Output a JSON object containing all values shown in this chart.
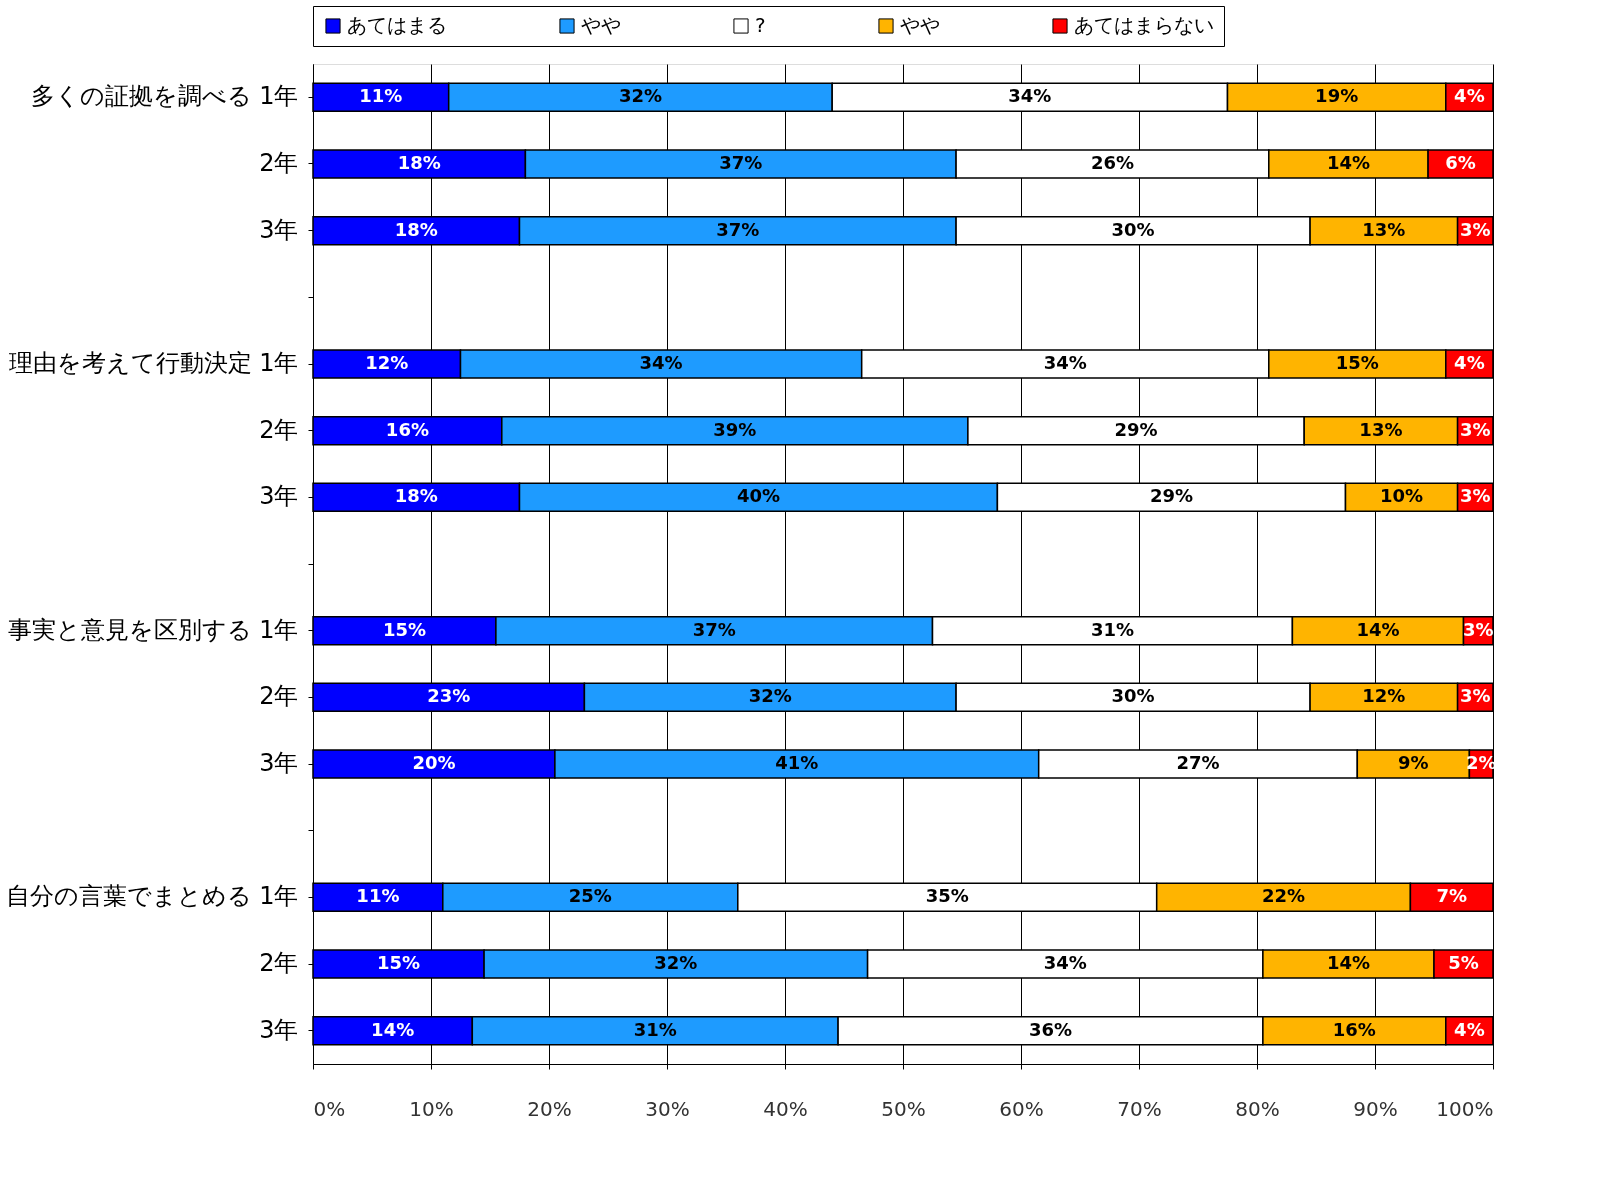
{
  "chart_data": {
    "type": "bar",
    "orientation": "horizontal",
    "stacked": true,
    "categories": [
      "多くの証拠を調べる 1年",
      "2年",
      "3年",
      null,
      "理由を考えて行動決定 1年",
      "2年",
      "3年",
      null,
      "事実と意見を区別する 1年",
      "2年",
      "3年",
      null,
      "自分の言葉でまとめる 1年",
      "2年",
      "3年"
    ],
    "series": [
      {
        "name": "あてはまる",
        "color": "#0000ff",
        "values": [
          11.5,
          18,
          17.5,
          null,
          12.5,
          16,
          17.5,
          null,
          15.5,
          23,
          20.5,
          null,
          11,
          14.5,
          13.5
        ],
        "value_labels": [
          "11%",
          "18%",
          "18%",
          null,
          "12%",
          "16%",
          "18%",
          null,
          "15%",
          "23%",
          "20%",
          null,
          "11%",
          "15%",
          "14%"
        ]
      },
      {
        "name": "やや",
        "color": "#1e9bff",
        "values": [
          32.5,
          36.5,
          37,
          null,
          34,
          39.5,
          40.5,
          null,
          37,
          31.5,
          41,
          null,
          25,
          32.5,
          31
        ],
        "value_labels": [
          "32%",
          "37%",
          "37%",
          null,
          "34%",
          "39%",
          "40%",
          null,
          "37%",
          "32%",
          "41%",
          null,
          "25%",
          "32%",
          "31%"
        ]
      },
      {
        "name": "?",
        "color": "#ffffff",
        "values": [
          33.5,
          26.5,
          30,
          null,
          34.5,
          28.5,
          29.5,
          null,
          30.5,
          30,
          27,
          null,
          35.5,
          33.5,
          36
        ],
        "value_labels": [
          "34%",
          "26%",
          "30%",
          null,
          "34%",
          "29%",
          "29%",
          null,
          "31%",
          "30%",
          "27%",
          null,
          "35%",
          "34%",
          "36%"
        ]
      },
      {
        "name": "やや",
        "color": "#ffb400",
        "values": [
          18.5,
          13.5,
          12.5,
          null,
          15,
          13,
          9.5,
          null,
          14.5,
          12.5,
          9.5,
          null,
          21.5,
          14.5,
          15.5
        ],
        "value_labels": [
          "19%",
          "14%",
          "13%",
          null,
          "15%",
          "13%",
          "10%",
          null,
          "14%",
          "12%",
          "9%",
          null,
          "22%",
          "14%",
          "16%"
        ]
      },
      {
        "name": "あてはまらない",
        "color": "#ff0000",
        "values": [
          4,
          5.5,
          3,
          null,
          4,
          3,
          3,
          null,
          2.5,
          3,
          2,
          null,
          7,
          5,
          4
        ],
        "value_labels": [
          "4%",
          "6%",
          "3%",
          null,
          "4%",
          "3%",
          "3%",
          null,
          "3%",
          "3%",
          "2%",
          null,
          "7%",
          "5%",
          "4%"
        ]
      }
    ],
    "xlim": [
      0,
      100
    ],
    "xticks": [
      {
        "value": 0,
        "label": "0%"
      },
      {
        "value": 10,
        "label": "10%"
      },
      {
        "value": 20,
        "label": "20%"
      },
      {
        "value": 30,
        "label": "30%"
      },
      {
        "value": 40,
        "label": "40%"
      },
      {
        "value": 50,
        "label": "50%"
      },
      {
        "value": 60,
        "label": "60%"
      },
      {
        "value": 70,
        "label": "70%"
      },
      {
        "value": 80,
        "label": "80%"
      },
      {
        "value": 90,
        "label": "90%"
      },
      {
        "value": 100,
        "label": "100%"
      }
    ],
    "grid": "x",
    "legend": "top"
  }
}
